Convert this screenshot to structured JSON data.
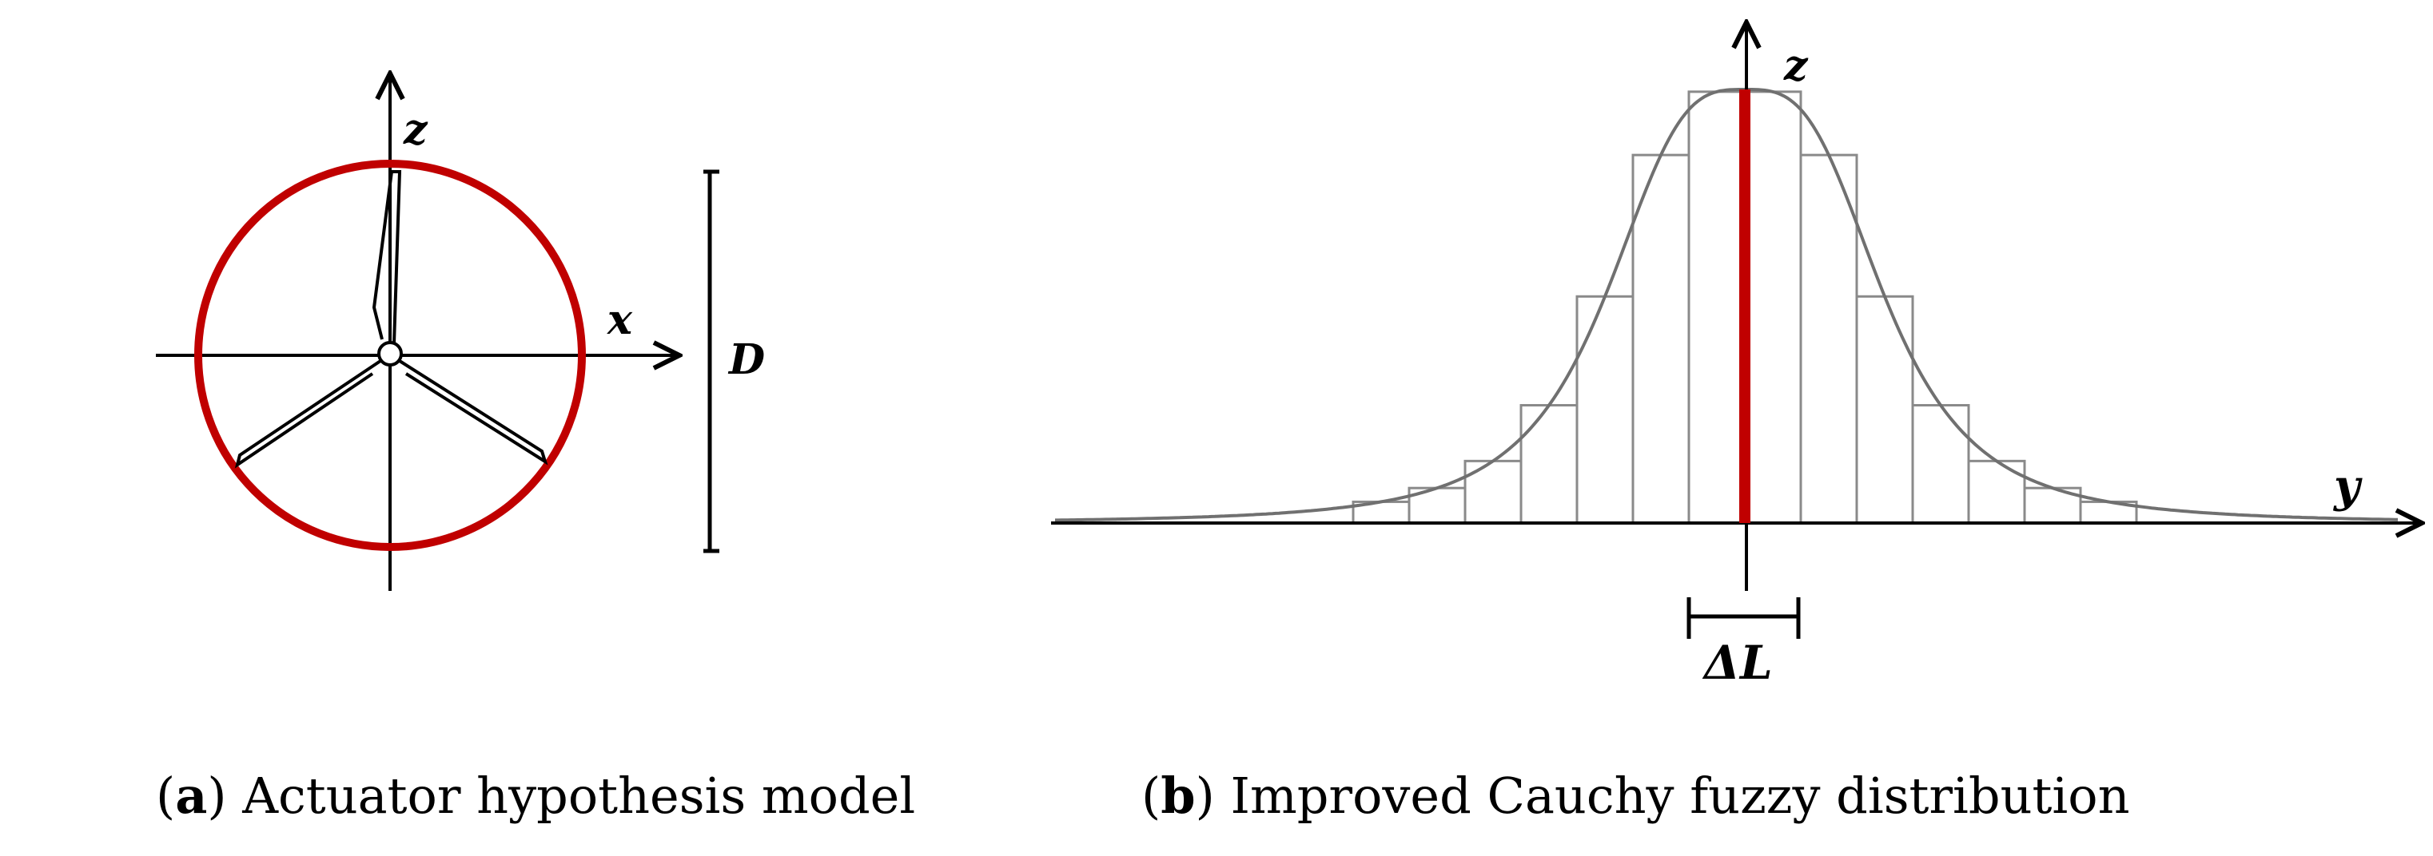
{
  "panel_a": {
    "axis_x": "x",
    "axis_z": "z",
    "dimension_label": "D",
    "caption_open": "(",
    "caption_letter": "a",
    "caption_text": ") Actuator hypothesis model",
    "colors": {
      "rotor_disk": "#c00000",
      "lines": "#000000"
    }
  },
  "panel_b": {
    "axis_y": "y",
    "axis_z": "z",
    "width_label": "ΔL",
    "caption_open": "(",
    "caption_letter": "b",
    "caption_text": ") Improved Cauchy fuzzy distribution",
    "colors": {
      "center_line": "#c00000",
      "curve": "#707070"
    }
  }
}
